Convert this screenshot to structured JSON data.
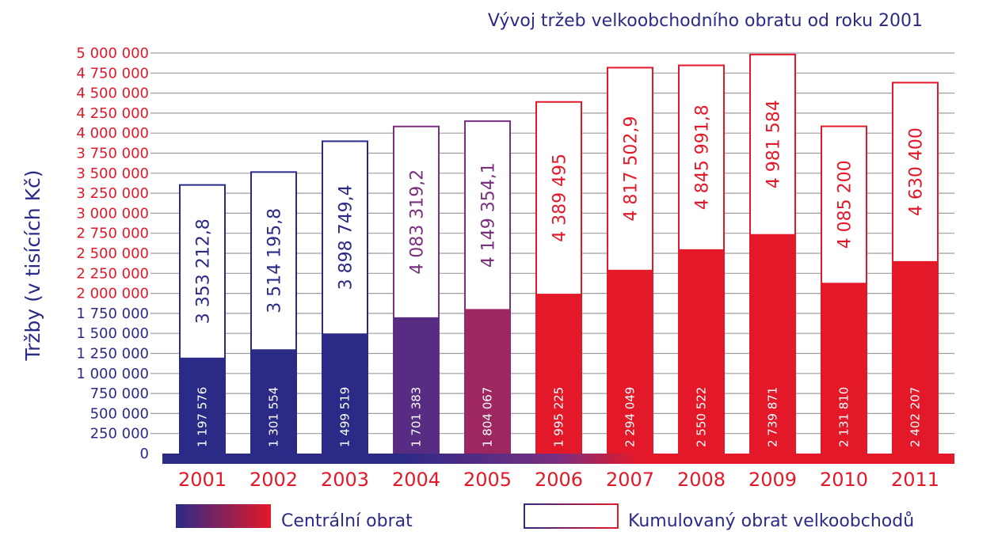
{
  "chart_data": {
    "type": "bar",
    "title": "Vývoj tržeb velkoobchodního obratu od roku 2001",
    "ylabel": "Tržby (v tisících Kč)",
    "xlabel": "",
    "ylim": [
      0,
      5000000
    ],
    "yticks": [
      0,
      250000,
      500000,
      750000,
      1000000,
      1250000,
      1500000,
      1750000,
      2000000,
      2250000,
      2500000,
      2750000,
      3000000,
      3250000,
      3500000,
      3750000,
      4000000,
      4250000,
      4500000,
      4750000,
      5000000
    ],
    "ytick_labels": [
      "0",
      "250 000",
      "500 000",
      "750 000",
      "1 000 000",
      "1 250 000",
      "1 500 000",
      "1 750 000",
      "2 000 000",
      "2 250 000",
      "2 500 000",
      "2 750 000",
      "3 000 000",
      "3 250 000",
      "3 500 000",
      "3 750 000",
      "4 000 000",
      "4 250 000",
      "4 500 000",
      "4 750 000",
      "5 000 000"
    ],
    "grid": true,
    "categories": [
      "2001",
      "2002",
      "2003",
      "2004",
      "2005",
      "2006",
      "2007",
      "2008",
      "2009",
      "2010",
      "2011"
    ],
    "series": [
      {
        "name": "Centrální obrat",
        "style": "filled",
        "values": [
          1197576,
          1301554,
          1499519,
          1701383,
          1804067,
          1995225,
          2294049,
          2550522,
          2739871,
          2131810,
          2402207
        ],
        "labels": [
          "1 197 576",
          "1 301 554",
          "1 499 519",
          "1 701 383",
          "1 804 067",
          "1 995 225",
          "2 294 049",
          "2 550 522",
          "2 739 871",
          "2 131 810",
          "2 402 207"
        ]
      },
      {
        "name": "Kumulovaný obrat velkoobchodů",
        "style": "outline",
        "values": [
          3353212.8,
          3514195.8,
          3898749.4,
          4083319.2,
          4149354.1,
          4389495,
          4817502.9,
          4845991.8,
          4981584,
          4085200,
          4630400
        ],
        "labels": [
          "3 353 212,8",
          "3 514 195,8",
          "3 898 749,4",
          "4 083 319,2",
          "4 149 354,1",
          "4 389 495",
          "4 817 502,9",
          "4 845 991,8",
          "4 981 584",
          "4 085 200",
          "4 630 400"
        ]
      }
    ],
    "legend_position": "bottom",
    "colors": {
      "blue": "#2b2a87",
      "red": "#e3192a",
      "purple": "#7a2f7f",
      "grid": "#9d9d9d"
    }
  }
}
